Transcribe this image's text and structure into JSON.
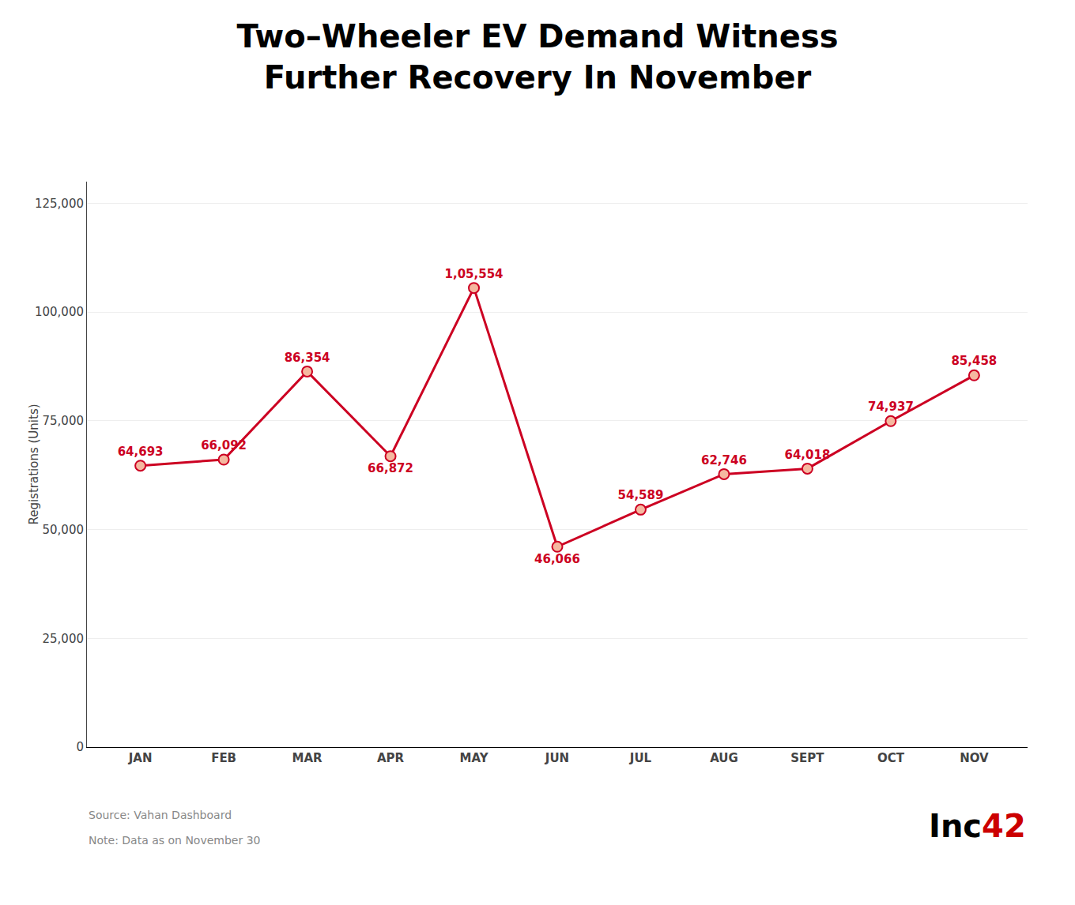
{
  "chart_data": {
    "type": "line",
    "title": "Two–Wheeler EV Demand Witness",
    "subtitle": "Further Recovery In November",
    "categories": [
      "JAN",
      "FEB",
      "MAR",
      "APR",
      "MAY",
      "JUN",
      "JUL",
      "AUG",
      "SEPT",
      "OCT",
      "NOV"
    ],
    "values": [
      64693,
      66092,
      86354,
      66872,
      105554,
      46066,
      54589,
      62746,
      64018,
      74937,
      85458
    ],
    "value_labels": [
      "64,693",
      "66,092",
      "86,354",
      "66,872",
      "1,05,554",
      "46,066",
      "54,589",
      "62,746",
      "64,018",
      "74,937",
      "85,458"
    ],
    "data_labels": true,
    "color": "#cc0022",
    "ylabel": "Registrations (Units)",
    "ylim": [
      0,
      130000
    ],
    "yticks": [
      0,
      {
        "value": 25000,
        "label": "25,000"
      },
      {
        "value": 50000,
        "label": "50,000"
      },
      {
        "value": 75000,
        "label": "75,000"
      },
      {
        "value": 100000,
        "label": "100,000"
      },
      {
        "value": 125000,
        "label": "125,000"
      }
    ],
    "grid": true,
    "annotations": [
      "Source: Vahan Dashboard",
      "Note: Data as on November 30",
      "Inc",
      "42"
    ]
  }
}
